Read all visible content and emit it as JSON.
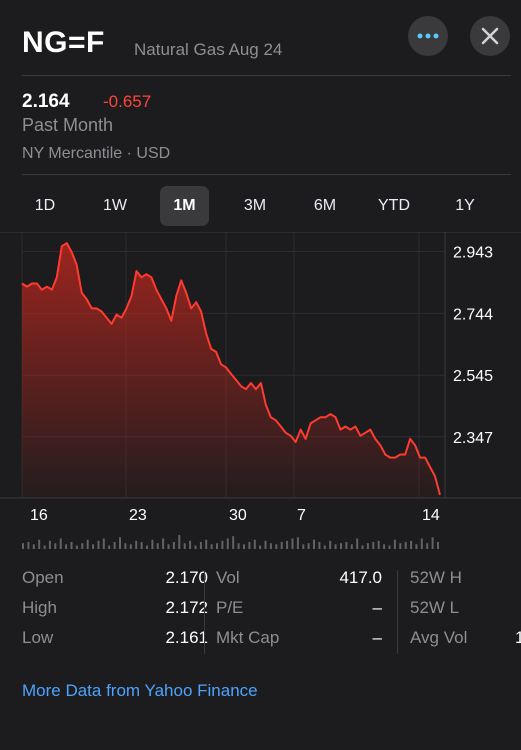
{
  "header": {
    "symbol": "NG=F",
    "name": "Natural Gas Aug 24",
    "more_label": "•••",
    "close_label": "✕"
  },
  "quote": {
    "price": "2.164",
    "change": "-0.657",
    "period": "Past Month",
    "exchange": "NY Mercantile · USD"
  },
  "ranges": [
    "1D",
    "1W",
    "1M",
    "3M",
    "6M",
    "YTD",
    "1Y"
  ],
  "active_range": "1M",
  "stats": {
    "col1": [
      {
        "label": "Open",
        "value": "2.170"
      },
      {
        "label": "High",
        "value": "2.172"
      },
      {
        "label": "Low",
        "value": "2.161"
      }
    ],
    "col2": [
      {
        "label": "Vol",
        "value": "417.0"
      },
      {
        "label": "P/E",
        "value": "–"
      },
      {
        "label": "Mkt Cap",
        "value": "–"
      }
    ],
    "col3": [
      {
        "label": "52W H",
        "value": ""
      },
      {
        "label": "52W L",
        "value": ""
      },
      {
        "label": "Avg Vol",
        "value": "1"
      }
    ]
  },
  "footer_link": "More Data from Yahoo Finance",
  "colors": {
    "line": "#ff3b30",
    "change": "#ff453a",
    "link": "#4da3ff",
    "background": "#1c1c1e"
  },
  "chart_data": {
    "type": "area",
    "y_ticks": [
      "2.943",
      "2.744",
      "2.545",
      "2.347"
    ],
    "x_ticks": [
      "16",
      "23",
      "30",
      "7",
      "14"
    ],
    "ylim": [
      2.15,
      2.98
    ],
    "grid": true,
    "series": [
      {
        "values": [
          2.84,
          2.83,
          2.84,
          2.84,
          2.82,
          2.83,
          2.82,
          2.86,
          2.96,
          2.97,
          2.94,
          2.9,
          2.81,
          2.79,
          2.76,
          2.76,
          2.75,
          2.73,
          2.71,
          2.74,
          2.73,
          2.76,
          2.8,
          2.88,
          2.86,
          2.87,
          2.86,
          2.82,
          2.79,
          2.76,
          2.72,
          2.8,
          2.85,
          2.81,
          2.76,
          2.78,
          2.75,
          2.68,
          2.63,
          2.62,
          2.58,
          2.57,
          2.55,
          2.53,
          2.51,
          2.5,
          2.52,
          2.5,
          2.52,
          2.45,
          2.41,
          2.4,
          2.38,
          2.36,
          2.35,
          2.33,
          2.37,
          2.34,
          2.39,
          2.4,
          2.41,
          2.41,
          2.42,
          2.41,
          2.37,
          2.38,
          2.37,
          2.38,
          2.35,
          2.36,
          2.37,
          2.34,
          2.32,
          2.29,
          2.28,
          2.28,
          2.29,
          2.29,
          2.34,
          2.32,
          2.28,
          2.28,
          2.25,
          2.22,
          2.16
        ]
      }
    ],
    "volume": [
      5,
      6,
      4,
      8,
      3,
      7,
      5,
      9,
      4,
      6,
      3,
      5,
      8,
      4,
      7,
      9,
      3,
      6,
      10,
      5,
      4,
      7,
      6,
      3,
      8,
      5,
      9,
      4,
      6,
      12,
      5,
      7,
      3,
      6,
      8,
      4,
      5,
      7,
      9,
      11,
      5,
      4,
      6,
      8,
      3,
      7,
      5,
      4,
      6,
      7,
      9,
      10,
      4,
      5,
      8,
      6,
      3,
      7,
      4,
      5,
      6,
      4,
      9,
      3,
      5,
      6,
      7,
      4,
      3,
      8,
      5,
      6,
      7,
      4,
      9,
      5,
      10,
      6
    ]
  }
}
